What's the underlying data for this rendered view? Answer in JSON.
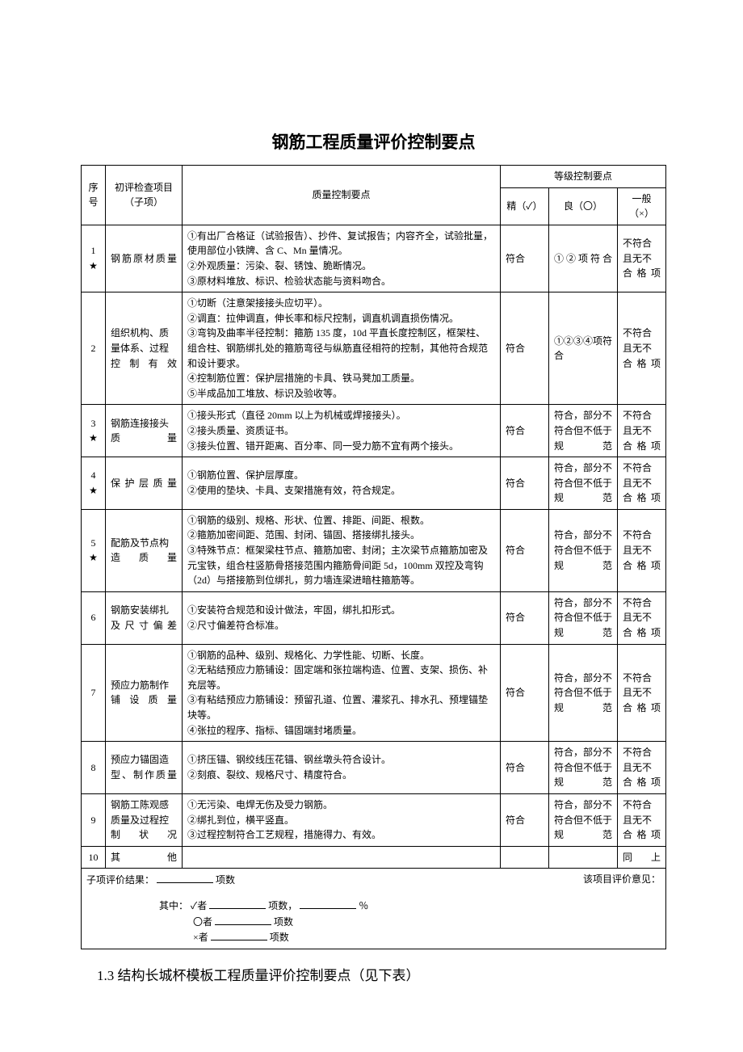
{
  "title": "钢筋工程质量评价控制要点",
  "header": {
    "num": "序号",
    "item": "初评检查项目（子项）",
    "desc": "质量控制要点",
    "grade_group": "等级控制要点",
    "jing": "精（✓）",
    "liang": "良（〇）",
    "yiban": "一般（×）"
  },
  "rows": [
    {
      "num": "1\n★",
      "item": "钢筋原材质量",
      "desc": "①有出厂合格证（试验报告）、抄件、复试报告；内容齐全，试验批量，使用部位小铁牌、含 C、Mn 量情况。\n②外观质量：污染、裂、锈蚀、脆断情况。\n③原材料堆放、标识、检验状态能与资料吻合。",
      "jing": "符合",
      "liang": "①②项符合",
      "yiban": "不符合且无不合格项"
    },
    {
      "num": "2",
      "item": "组织机构、质量体系、过程控制有效",
      "desc": "①切断（注意架接接头应切平）。\n②调直：拉伸调直，伸长率和标尺控制，调直机调直损伤情况。\n③弯钩及曲率半径控制：箍筋 135 度，10d 平直长度控制区，框架柱、组合柱、钢筋绑扎处的箍筋弯径与纵筋直径相符的控制，其他符合规范和设计要求。\n④控制筋位置：保护层措施的卡具、铁马凳加工质量。\n⑤半成品加工堆放、标识及验收等。",
      "jing": "符合",
      "liang": "①②③④项符合",
      "yiban": "不符合且无不合格项"
    },
    {
      "num": "3\n★",
      "item": "钢筋连接接头质量",
      "desc": "①接头形式（直径 20mm 以上为机械或焊接接头）。\n②接头质量、资质证书。\n③接头位置、错开距离、百分率、同一受力筋不宜有两个接头。",
      "jing": "符合",
      "liang": "符合，部分不符合但不低于规范",
      "yiban": "不符合且无不合格项"
    },
    {
      "num": "4\n★",
      "item": "保护层质量",
      "desc": "①钢筋位置、保护层厚度。\n②使用的垫块、卡具、支架措施有效，符合规定。",
      "jing": "符合",
      "liang": "符合，部分不符合但不低于规范",
      "yiban": "不符合且无不合格项"
    },
    {
      "num": "5\n★",
      "item": "配筋及节点构造质量",
      "desc": "①钢筋的级别、规格、形状、位置、排距、间距、根数。\n②箍筋加密间距、范围、封闭、锚固、搭接绑扎接头。\n③特殊节点：框架梁柱节点、箍筋加密、封闭；主次梁节点箍筋加密及元宝铁，组合柱竖筋骨搭接范围内箍筋骨间距 5d，100mm 双控及弯钩（2d）与搭接筋到位绑扎，剪力墙连梁进暗柱箍筋等。",
      "jing": "符合",
      "liang": "符合，部分不符合但不低于规范",
      "yiban": "不符合且无不合格项"
    },
    {
      "num": "6",
      "item": "钢筋安装绑扎及尺寸偏差",
      "desc": "①安装符合规范和设计做法，牢固，绑扎扣形式。\n②尺寸偏差符合标准。",
      "jing": "符合",
      "liang": "符合，部分不符合但不低于规范",
      "yiban": "不符合且无不合格项"
    },
    {
      "num": "7",
      "item": "预应力筋制作铺设质量",
      "desc": "①钢筋的品种、级别、规格化、力学性能、切断、长度。\n②无粘结预应力筋铺设：固定端和张拉端构造、位置、支架、损伤、补充层等。\n③有粘结预应力筋铺设：预留孔道、位置、灌浆孔、排水孔、预埋锚垫块等。\n④张拉的程序、指标、锚固端封堵质量。",
      "jing": "符合",
      "liang": "符合，部分不符合但不低于规范",
      "yiban": "不符合且无不合格项"
    },
    {
      "num": "8",
      "item": "预应力锚固造型、制作质量",
      "desc": "①挤压锚、钢绞线压花锚、钢丝墩头符合设计。\n②刻痕、裂纹、规格尺寸、精度符合。",
      "jing": "符合",
      "liang": "符合，部分不符合但不低于规范",
      "yiban": "不符合且无不合格项"
    },
    {
      "num": "9",
      "item": "钢筋工陈观感质量及过程控制状况",
      "desc": "①无污染、电焊无伤及受力钢筋。\n②绑扎到位，横平竖直。\n③过程控制符合工艺规程，措施得力、有效。",
      "jing": "符合",
      "liang": "符合，部分不符合但不低于规范",
      "yiban": "不符合且无不合格项"
    },
    {
      "num": "10",
      "item": "其他",
      "desc": "",
      "jing": "",
      "liang": "",
      "yiban": "同上"
    }
  ],
  "footer": {
    "left_label": "子项评价结果：",
    "right_label": "该项目评价意见：",
    "xiangshu": "项数",
    "qizhong": "其中：",
    "check": "✓者",
    "circle": "〇者",
    "cross": "×者",
    "percent": "％"
  },
  "section_heading": "1.3 结构长城杯模板工程质量评价控制要点（见下表）"
}
